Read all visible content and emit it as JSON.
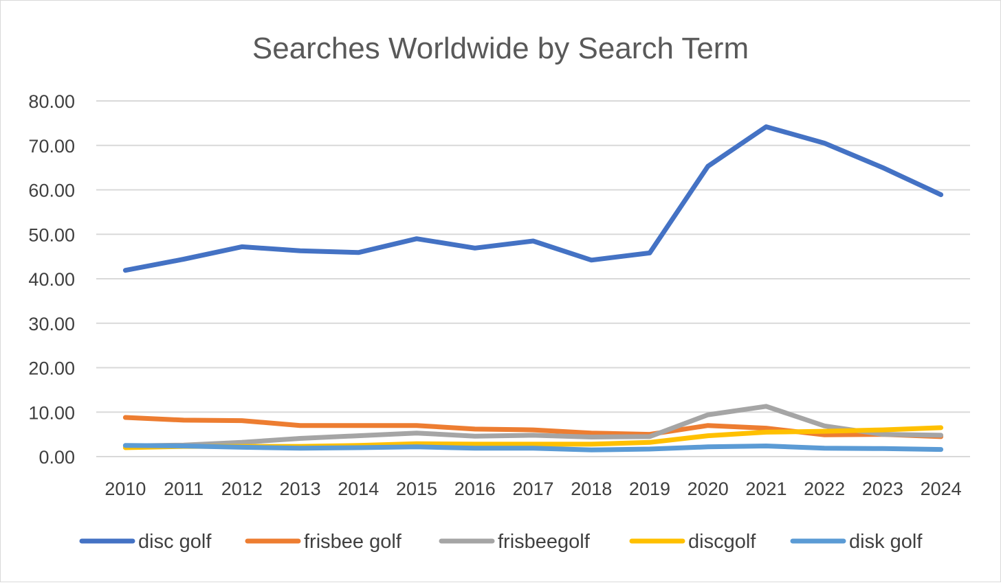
{
  "chart_data": {
    "type": "line",
    "title": "Searches Worldwide by Search Term",
    "xlabel": "",
    "ylabel": "",
    "ylim": [
      0,
      80
    ],
    "yticks": [
      "0.00",
      "10.00",
      "20.00",
      "30.00",
      "40.00",
      "50.00",
      "60.00",
      "70.00",
      "80.00"
    ],
    "grid": "horizontal",
    "legend_position": "bottom",
    "categories": [
      "2010",
      "2011",
      "2012",
      "2013",
      "2014",
      "2015",
      "2016",
      "2017",
      "2018",
      "2019",
      "2020",
      "2021",
      "2022",
      "2023",
      "2024"
    ],
    "series": [
      {
        "name": "disc golf",
        "color": "#4472C4",
        "values": [
          41.9,
          44.4,
          47.2,
          46.3,
          45.9,
          49.0,
          46.9,
          48.5,
          44.2,
          45.8,
          65.3,
          74.2,
          70.5,
          65.0,
          58.9
        ]
      },
      {
        "name": "frisbee golf",
        "color": "#ED7D31",
        "values": [
          8.8,
          8.2,
          8.1,
          7.0,
          7.0,
          7.0,
          6.2,
          6.0,
          5.3,
          5.0,
          7.0,
          6.4,
          4.9,
          5.0,
          4.5
        ]
      },
      {
        "name": "frisbeegolf",
        "color": "#A5A5A5",
        "values": [
          2.4,
          2.6,
          3.2,
          4.1,
          4.7,
          5.3,
          4.6,
          4.8,
          4.4,
          4.5,
          9.4,
          11.3,
          6.9,
          5.0,
          4.8
        ]
      },
      {
        "name": "discgolf",
        "color": "#FFC000",
        "values": [
          2.0,
          2.3,
          2.3,
          2.3,
          2.5,
          2.9,
          2.8,
          2.8,
          2.8,
          3.2,
          4.7,
          5.5,
          5.7,
          6.0,
          6.5
        ]
      },
      {
        "name": "disk golf",
        "color": "#5B9BD5",
        "values": [
          2.5,
          2.4,
          2.1,
          1.9,
          2.0,
          2.2,
          1.9,
          1.9,
          1.5,
          1.7,
          2.2,
          2.4,
          1.9,
          1.8,
          1.6
        ]
      }
    ]
  }
}
